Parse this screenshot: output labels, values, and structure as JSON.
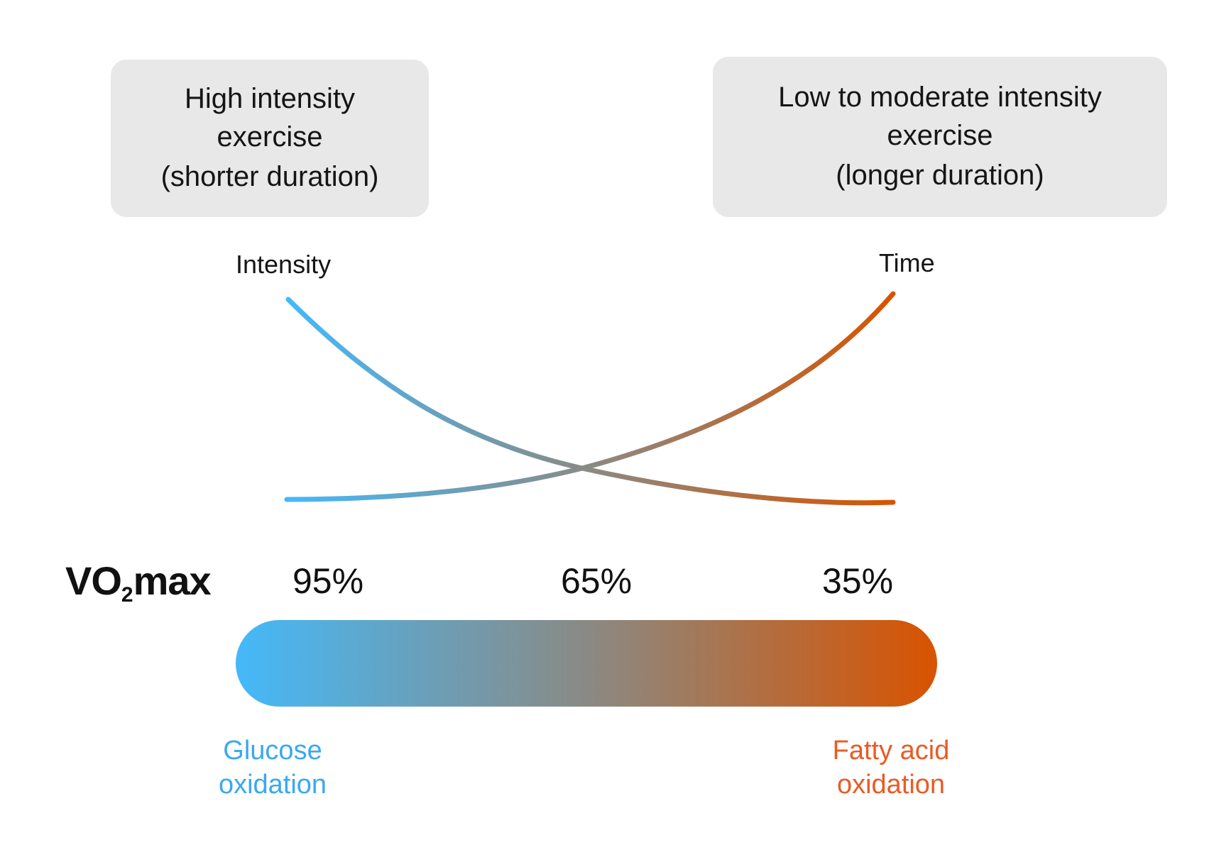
{
  "boxes": {
    "left": {
      "line1": "High intensity",
      "line2": "exercise",
      "sub": "(shorter duration)"
    },
    "right": {
      "line1": "Low to moderate intensity",
      "line2": "exercise",
      "sub": "(longer duration)"
    }
  },
  "axes": {
    "intensity": "Intensity",
    "time": "Time"
  },
  "vo2max": {
    "prefix": "VO",
    "subscript": "2",
    "suffix": "max",
    "percentages": [
      "95%",
      "65%",
      "35%"
    ]
  },
  "bar": {
    "start_color": "#44b9f9",
    "end_color": "#d85300"
  },
  "labels": {
    "glucose": {
      "line1": "Glucose",
      "line2": "oxidation",
      "color": "#3aa8f0"
    },
    "fatty": {
      "line1": "Fatty acid",
      "line2": "oxidation",
      "color": "#ea5b25"
    }
  }
}
